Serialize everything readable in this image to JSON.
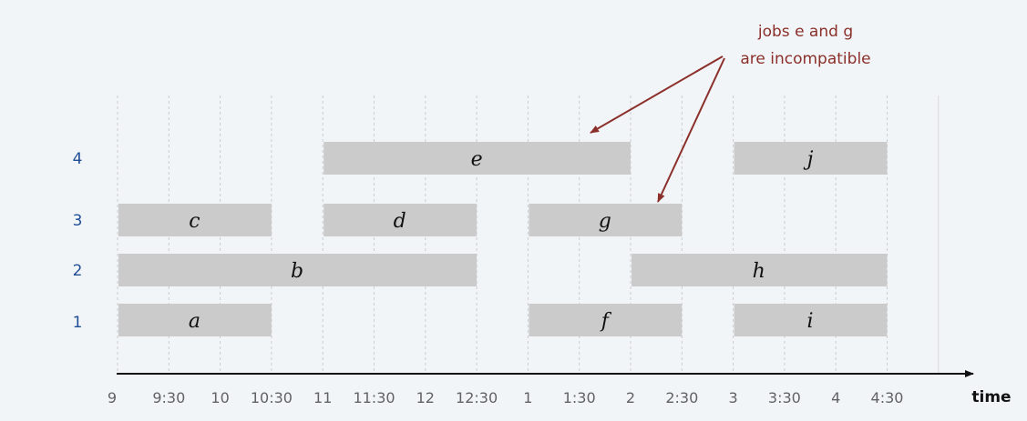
{
  "diagram": {
    "time_ticks": [
      "9",
      "9:30",
      "10",
      "10:30",
      "11",
      "11:30",
      "12",
      "12:30",
      "1",
      "1:30",
      "2",
      "2:30",
      "3",
      "3:30",
      "4",
      "4:30"
    ],
    "time_axis_label": "time",
    "rows": [
      "1",
      "2",
      "3",
      "4"
    ],
    "jobs": [
      {
        "name": "a",
        "row": 1,
        "start": "9",
        "end": "10:30"
      },
      {
        "name": "b",
        "row": 2,
        "start": "9",
        "end": "12:30"
      },
      {
        "name": "c",
        "row": 3,
        "start": "9",
        "end": "10:30"
      },
      {
        "name": "d",
        "row": 3,
        "start": "11",
        "end": "12:30"
      },
      {
        "name": "e",
        "row": 4,
        "start": "11",
        "end": "2"
      },
      {
        "name": "f",
        "row": 1,
        "start": "1",
        "end": "2:30"
      },
      {
        "name": "g",
        "row": 3,
        "start": "1",
        "end": "2:30"
      },
      {
        "name": "h",
        "row": 2,
        "start": "2",
        "end": "4:30"
      },
      {
        "name": "i",
        "row": 1,
        "start": "3",
        "end": "4:30"
      },
      {
        "name": "j",
        "row": 4,
        "start": "3",
        "end": "4:30"
      }
    ],
    "annotation": {
      "line1": "jobs e and g",
      "line2": "are incompatible",
      "targets": [
        "e",
        "g"
      ]
    },
    "colors": {
      "bar": "#cbcbcb",
      "annotation": "#8b2f2a",
      "row_label": "#1f4e97"
    }
  }
}
